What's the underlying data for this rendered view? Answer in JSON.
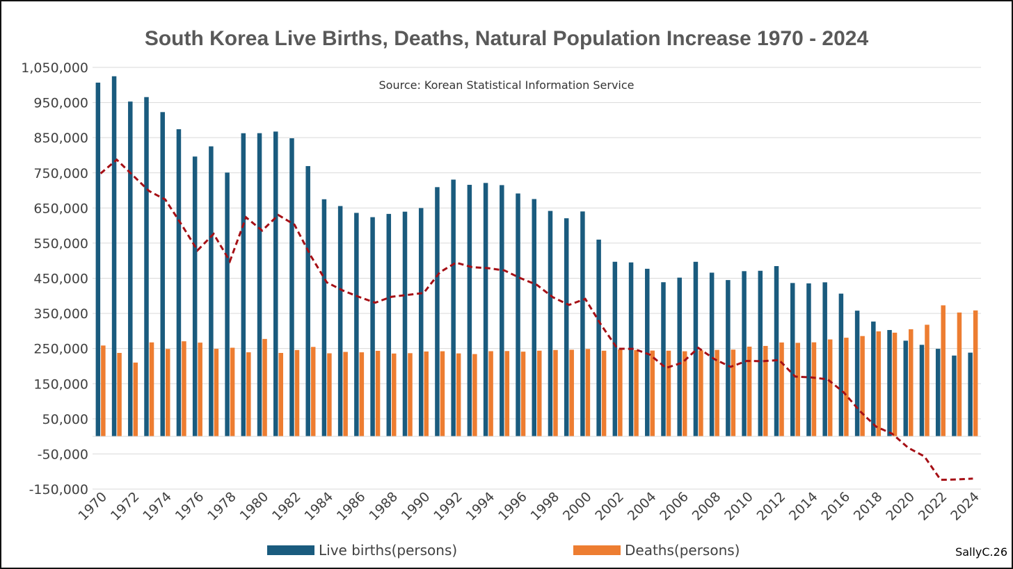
{
  "chart_data": {
    "type": "bar",
    "title": "South Korea Live Births, Deaths, Natural Population Increase 1970 - 2024",
    "subtitle": "Source: Korean Statistical Information Service",
    "ylim": [
      -150000,
      1050000
    ],
    "yticks": [
      -150000,
      -50000,
      50000,
      150000,
      250000,
      350000,
      450000,
      550000,
      650000,
      750000,
      850000,
      950000,
      1050000
    ],
    "ytick_labels": [
      "-150,000",
      "-50,000",
      "50,000",
      "150,000",
      "250,000",
      "350,000",
      "450,000",
      "550,000",
      "650,000",
      "750,000",
      "850,000",
      "950,000",
      "1,050,000"
    ],
    "xticks": [
      "1970",
      "1972",
      "1974",
      "1976",
      "1978",
      "1980",
      "1982",
      "1984",
      "1986",
      "1988",
      "1990",
      "1992",
      "1994",
      "1996",
      "1998",
      "2000",
      "2002",
      "2004",
      "2006",
      "2008",
      "2010",
      "2012",
      "2014",
      "2016",
      "2018",
      "2020",
      "2022",
      "2024"
    ],
    "grid": true,
    "legend_position": "bottom",
    "x": [
      1970,
      1971,
      1972,
      1973,
      1974,
      1975,
      1976,
      1977,
      1978,
      1979,
      1980,
      1981,
      1982,
      1983,
      1984,
      1985,
      1986,
      1987,
      1988,
      1989,
      1990,
      1991,
      1992,
      1993,
      1994,
      1995,
      1996,
      1997,
      1998,
      1999,
      2000,
      2001,
      2002,
      2003,
      2004,
      2005,
      2006,
      2007,
      2008,
      2009,
      2010,
      2011,
      2012,
      2013,
      2014,
      2015,
      2016,
      2017,
      2018,
      2019,
      2020,
      2021,
      2022,
      2023,
      2024
    ],
    "series": [
      {
        "name": "Live births(persons)",
        "type": "bar",
        "color": "#1a5b7e",
        "values": [
          1006645,
          1024773,
          952780,
          965521,
          922823,
          874030,
          796331,
          825339,
          750728,
          862669,
          862835,
          867409,
          848312,
          769155,
          674793,
          655489,
          636019,
          623831,
          633092,
          639431,
          649738,
          709275,
          730678,
          715826,
          721185,
          715020,
          691226,
          675394,
          641594,
          620668,
          640089,
          559934,
          496911,
          495036,
          476958,
          438707,
          451759,
          496822,
          465892,
          444849,
          470171,
          471265,
          484550,
          436455,
          435435,
          438420,
          406243,
          357771,
          326822,
          302676,
          272337,
          260562,
          249186,
          230028,
          238300
        ]
      },
      {
        "name": "Deaths(persons)",
        "type": "bar",
        "color": "#ed7d31",
        "values": [
          258589,
          237528,
          210071,
          267460,
          248807,
          270657,
          266857,
          249254,
          252298,
          239282,
          277284,
          237481,
          245767,
          254563,
          236445,
          240418,
          239256,
          243504,
          235779,
          236818,
          241616,
          242270,
          236162,
          234257,
          242439,
          242838,
          241149,
          243892,
          245825,
          246539,
          248740,
          243813,
          247524,
          245817,
          244217,
          243883,
          242266,
          244874,
          246113,
          246942,
          255405,
          257396,
          267221,
          266257,
          267692,
          275895,
          280827,
          285534,
          298820,
          295110,
          304948,
          317680,
          372939,
          352511,
          358400
        ]
      },
      {
        "name": "",
        "type": "line",
        "style": "dashed",
        "color": "#a50f15",
        "values": [
          748056,
          787245,
          742709,
          698061,
          674016,
          603373,
          529474,
          576085,
          498430,
          623387,
          585551,
          629928,
          602545,
          514592,
          438348,
          415071,
          396763,
          380327,
          397313,
          402613,
          408122,
          467005,
          494516,
          481569,
          478746,
          472182,
          450077,
          431502,
          395769,
          374129,
          391349,
          316121,
          249387,
          249219,
          232741,
          194824,
          209493,
          251948,
          219779,
          197907,
          214766,
          213869,
          217329,
          170198,
          167743,
          162525,
          125416,
          72237,
          28002,
          7566,
          -32611,
          -57118,
          -123753,
          -122483,
          -120100
        ]
      }
    ]
  },
  "watermark": "SallyC.26"
}
